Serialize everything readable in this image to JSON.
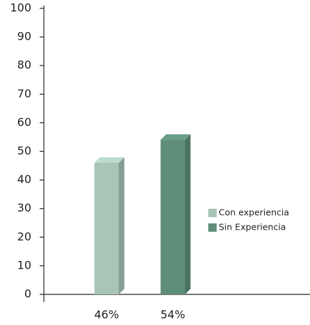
{
  "chart_data": {
    "type": "bar",
    "categories": [
      null
    ],
    "series": [
      {
        "name": "Con experiencia",
        "color": "#a8c5b8",
        "values": [
          46
        ],
        "value_labels": [
          "46%"
        ]
      },
      {
        "name": "Sin Experiencia",
        "color": "#5e8e7a",
        "values": [
          54
        ],
        "value_labels": [
          "54%"
        ]
      }
    ],
    "ylim": [
      0,
      100
    ],
    "yticks": [
      0,
      10,
      20,
      30,
      40,
      50,
      60,
      70,
      80,
      90,
      100
    ],
    "grid": false,
    "legend": "right"
  }
}
